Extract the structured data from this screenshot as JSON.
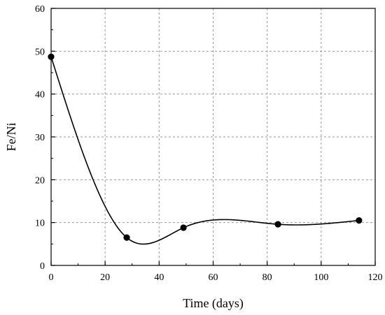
{
  "chart_data": {
    "type": "scatter",
    "xlabel": "Time (days)",
    "ylabel": "Fe/Ni",
    "xlim": [
      0,
      120
    ],
    "ylim": [
      0,
      60
    ],
    "xticks": [
      0,
      20,
      40,
      60,
      80,
      100,
      120
    ],
    "yticks": [
      0,
      10,
      20,
      30,
      40,
      50,
      60
    ],
    "grid": true,
    "series": [
      {
        "x": [
          0,
          28,
          49,
          84,
          114
        ],
        "y": [
          48.7,
          6.5,
          8.8,
          9.6,
          10.5
        ],
        "marker": "filled-circle",
        "smooth_line": true
      }
    ]
  }
}
